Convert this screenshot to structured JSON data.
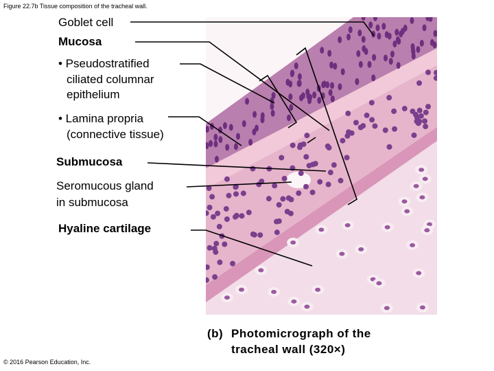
{
  "header": {
    "title": "Figure 22.7b Tissue composition of the tracheal wall."
  },
  "labels": [
    {
      "lines": [
        "Goblet cell"
      ]
    },
    {
      "lines": [
        "Mucosa"
      ]
    },
    {
      "lines": [
        "• Pseudostratified",
        "ciliated columnar",
        "epithelium"
      ]
    },
    {
      "lines": [
        "• Lamina propria",
        "(connective tissue)"
      ]
    },
    {
      "lines": [
        "Submucosa"
      ]
    },
    {
      "lines": [
        "Seromucous gland",
        "in submucosa"
      ]
    },
    {
      "lines": [
        "Hyaline cartilage"
      ]
    }
  ],
  "caption": {
    "panel": "(b)",
    "lines": [
      "Photomicrograph of the",
      "tracheal wall (320×)"
    ]
  },
  "footer": {
    "copyright": "© 2016 Pearson Education, Inc."
  }
}
